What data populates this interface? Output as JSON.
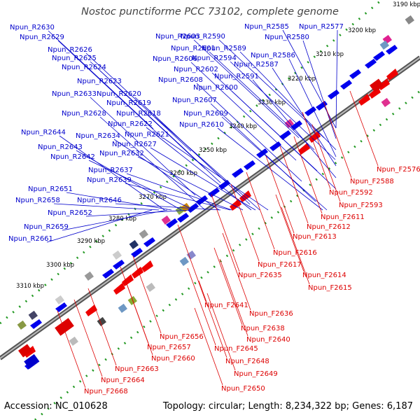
{
  "title": "Nostoc punctiforme PCC 73102, complete genome",
  "footer": {
    "accession": "Accession: NC_010628",
    "summary": "Topology: circular; Length: 8,234,322 bp; Genes: 6,187"
  },
  "colors": {
    "reverse_label": "#0000cc",
    "forward_label": "#dd0000",
    "reverse_gene": "#0000ee",
    "forward_gene": "#ee0000",
    "backbone": "#777777",
    "ticks": "#229922"
  },
  "scale_ticks": [
    "3190 kbp",
    "3200 kbp",
    "3210 kbp",
    "3220 kbp",
    "3230 kbp",
    "3240 kbp",
    "3250 kbp",
    "3260 kbp",
    "3270 kbp",
    "3280 kbp",
    "3290 kbp",
    "3300 kbp",
    "3310 kbp"
  ],
  "reverse_labels": [
    "Npun_R2630",
    "Npun_R2629",
    "Npun_R2626",
    "Npun_R2625",
    "Npun_R2624",
    "Npun_R2623",
    "Npun_R2633",
    "Npun_R2620",
    "Npun_R2619",
    "Npun_R2628",
    "Npun_R2618",
    "Npun_R2622",
    "Npun_R2644",
    "Npun_R2634",
    "Npun_R2621",
    "Npun_R2643",
    "Npun_R2627",
    "Npun_R2642",
    "Npun_R2632",
    "Npun_R2637",
    "Npun_R2639",
    "Npun_R2651",
    "Npun_R2646",
    "Npun_R2658",
    "Npun_R2652",
    "Npun_R2659",
    "Npun_R2661",
    "Npun_R2603",
    "Npun_R2590",
    "Npun_R2585",
    "Npun_R2577",
    "Npun_R2580",
    "Npun_R2601",
    "Npun_R2589",
    "Npun_R2606",
    "Npun_R2594",
    "Npun_R2586",
    "Npun_R2602",
    "Npun_R2587",
    "Npun_R2591",
    "Npun_R2608",
    "Npun_R2600",
    "Npun_R2607",
    "Npun_R2609",
    "Npun_R2610"
  ],
  "forward_labels": [
    "Npun_F2576",
    "Npun_F2588",
    "Npun_F2592",
    "Npun_F2593",
    "Npun_F2611",
    "Npun_F2612",
    "Npun_F2613",
    "Npun_F2616",
    "Npun_F2617",
    "Npun_F2614",
    "Npun_F2635",
    "Npun_F2615",
    "Npun_F2641",
    "Npun_F2636",
    "Npun_F2638",
    "Npun_F2640",
    "Npun_F2645",
    "Npun_F2648",
    "Npun_F2649",
    "Npun_F2650",
    "Npun_F2656",
    "Npun_F2657",
    "Npun_F2660",
    "Npun_F2663",
    "Npun_F2664",
    "Npun_F2668"
  ]
}
